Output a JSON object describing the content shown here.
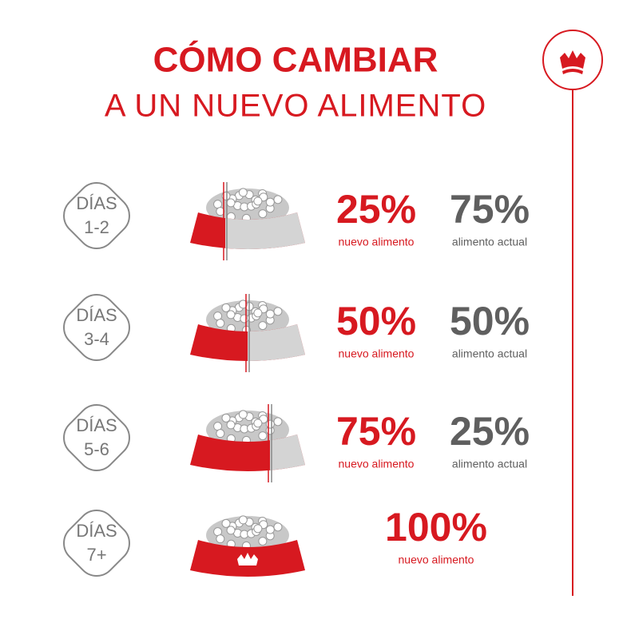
{
  "header": {
    "title": "CÓMO CAMBIAR",
    "subtitle": "A UN NUEVO ALIMENTO"
  },
  "rows": [
    {
      "days": "DÍAS",
      "range": "1-2",
      "new_pct": "25%",
      "new_label": "nuevo alimento",
      "old_pct": "75%",
      "old_label": "alimento actual"
    },
    {
      "days": "DÍAS",
      "range": "3-4",
      "new_pct": "50%",
      "new_label": "nuevo alimento",
      "old_pct": "50%",
      "old_label": "alimento actual"
    },
    {
      "days": "DÍAS",
      "range": "5-6",
      "new_pct": "75%",
      "new_label": "nuevo alimento",
      "old_pct": "25%",
      "old_label": "alimento actual"
    },
    {
      "days": "DÍAS",
      "range": "7+",
      "new_pct": "100%",
      "new_label": "nuevo alimento"
    }
  ]
}
